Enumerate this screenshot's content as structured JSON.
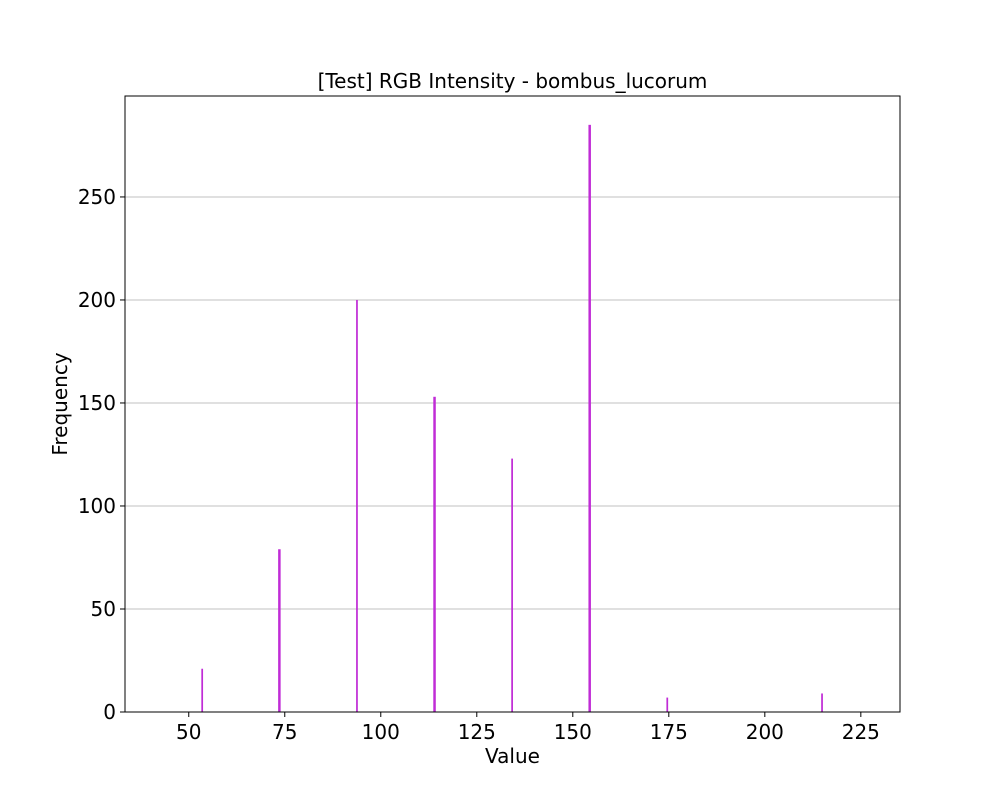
{
  "chart_data": {
    "type": "bar",
    "title": "[Test] RGB Intensity - bombus_lucorum",
    "xlabel": "Value",
    "ylabel": "Frequency",
    "xlim": [
      33.4,
      235.2
    ],
    "ylim": [
      0,
      299
    ],
    "x_ticks": [
      50,
      75,
      100,
      125,
      150,
      175,
      200,
      225
    ],
    "y_ticks": [
      0,
      50,
      100,
      150,
      200,
      250
    ],
    "grid": "y-axis",
    "legend": "none",
    "bar_color": "#c02cd6",
    "bars": [
      {
        "x": 53.5,
        "y": 21,
        "w": 0.45
      },
      {
        "x": 73.6,
        "y": 79,
        "w": 0.65
      },
      {
        "x": 93.8,
        "y": 200,
        "w": 0.45
      },
      {
        "x": 114.0,
        "y": 153,
        "w": 0.65
      },
      {
        "x": 134.2,
        "y": 123,
        "w": 0.45
      },
      {
        "x": 154.4,
        "y": 285,
        "w": 0.65
      },
      {
        "x": 174.6,
        "y": 7,
        "w": 0.45
      },
      {
        "x": 214.9,
        "y": 9,
        "w": 0.45
      }
    ]
  }
}
